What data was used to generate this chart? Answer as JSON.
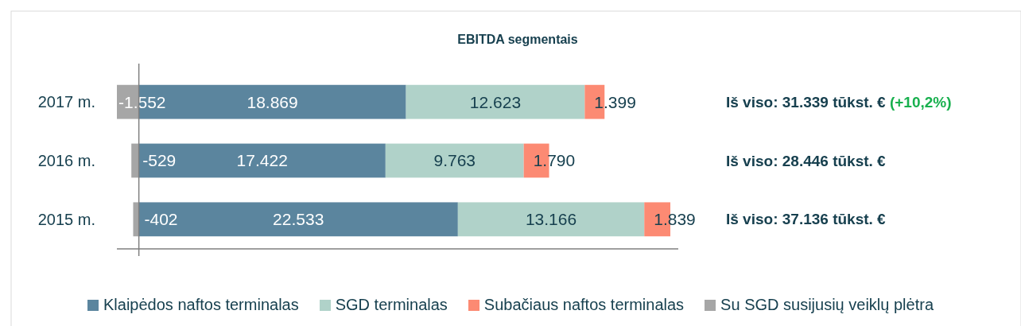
{
  "chart_data": {
    "type": "bar",
    "orientation": "horizontal",
    "stacked": true,
    "title": "EBITDA segmentais",
    "categories": [
      "2017 m.",
      "2016 m.",
      "2015 m."
    ],
    "series": [
      {
        "name": "Klaipėdos naftos terminalas",
        "color": "#5b859e",
        "values": [
          18869,
          17422,
          22533
        ],
        "value_labels": [
          "18.869",
          "17.422",
          "22.533"
        ]
      },
      {
        "name": "SGD terminalas",
        "color": "#b0d2c9",
        "values": [
          12623,
          9763,
          13166
        ],
        "value_labels": [
          "12.623",
          "9.763",
          "13.166"
        ]
      },
      {
        "name": "Subačiaus naftos terminalas",
        "color": "#fc8a73",
        "values": [
          1399,
          1790,
          1839
        ],
        "value_labels": [
          "1.399",
          "1.790",
          "1.839"
        ]
      },
      {
        "name": "Su SGD susijusių veiklų plėtra",
        "color": "#a6a6a6",
        "values": [
          -1552,
          -529,
          -402
        ],
        "value_labels": [
          "-1.552",
          "-529",
          "-402"
        ]
      }
    ],
    "annotations": [
      "Iš viso: 31.339 tūkst. € (+10,2%)",
      "Iš viso: 28.446 tūkst. €",
      "Iš viso: 37.136 tūkst. €"
    ],
    "legend": "bottom"
  }
}
